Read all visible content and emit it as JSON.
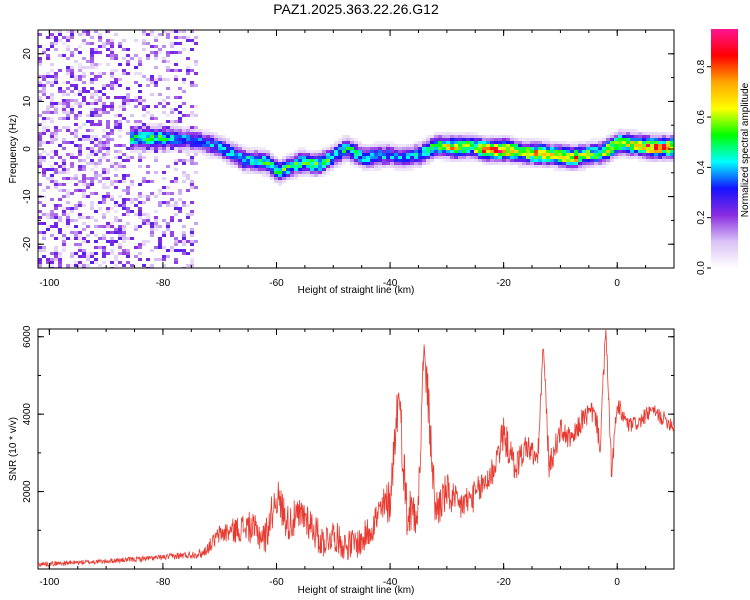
{
  "title": "PAZ1.2025.363.22.26.G12",
  "chart_data": [
    {
      "type": "heatmap",
      "xlabel": "Height of straight line (km)",
      "ylabel": "Frequency (Hz)",
      "xlim": [
        -102,
        10
      ],
      "ylim": [
        -25,
        25
      ],
      "x_ticks": [
        "-100",
        "-80",
        "-60",
        "-40",
        "-20",
        "0"
      ],
      "y_ticks": [
        "20",
        "10",
        "0",
        "-10",
        "-20"
      ],
      "x_tick_values": [
        -100,
        -80,
        -60,
        -40,
        -20,
        0
      ],
      "y_tick_values": [
        20,
        10,
        0,
        -10,
        -20
      ],
      "colorbar": {
        "label": "Normalized spectral amplitude",
        "ticks": [
          "0.0",
          "0.2",
          "0.4",
          "0.6",
          "0.8"
        ],
        "tick_values": [
          0,
          0.2,
          0.4,
          0.6,
          0.8
        ],
        "range": [
          0,
          0.95
        ],
        "colors": [
          "#ffffff",
          "#d9c2f5",
          "#8a2be2",
          "#1414ff",
          "#00ffff",
          "#00ff00",
          "#ffff00",
          "#ffa500",
          "#ff0000",
          "#ff1493"
        ]
      },
      "ridge": [
        {
          "x": -86,
          "f": 2.5,
          "a": 0.45
        },
        {
          "x": -82,
          "f": 2.6,
          "a": 0.55
        },
        {
          "x": -78,
          "f": 2.5,
          "a": 0.4
        },
        {
          "x": -74,
          "f": 2.0,
          "a": 0.35
        },
        {
          "x": -70,
          "f": 0.5,
          "a": 0.4
        },
        {
          "x": -66,
          "f": -2.0,
          "a": 0.45
        },
        {
          "x": -62,
          "f": -2.5,
          "a": 0.5
        },
        {
          "x": -60,
          "f": -4.5,
          "a": 0.5
        },
        {
          "x": -56,
          "f": -2.5,
          "a": 0.5
        },
        {
          "x": -53,
          "f": -3.0,
          "a": 0.55
        },
        {
          "x": -50,
          "f": -1.0,
          "a": 0.45
        },
        {
          "x": -48,
          "f": 0.5,
          "a": 0.5
        },
        {
          "x": -45,
          "f": -1.5,
          "a": 0.45
        },
        {
          "x": -41,
          "f": -1.0,
          "a": 0.4
        },
        {
          "x": -38,
          "f": -1.5,
          "a": 0.35
        },
        {
          "x": -35,
          "f": -0.8,
          "a": 0.45
        },
        {
          "x": -32,
          "f": 1.0,
          "a": 0.55
        },
        {
          "x": -29,
          "f": 0.6,
          "a": 0.7
        },
        {
          "x": -26,
          "f": 0.8,
          "a": 0.6
        },
        {
          "x": -23,
          "f": 0.0,
          "a": 0.8
        },
        {
          "x": -20,
          "f": 0.2,
          "a": 0.85
        },
        {
          "x": -17,
          "f": -0.5,
          "a": 0.6
        },
        {
          "x": -14,
          "f": -0.7,
          "a": 0.75
        },
        {
          "x": -11,
          "f": -1.0,
          "a": 0.6
        },
        {
          "x": -8,
          "f": -1.5,
          "a": 0.75
        },
        {
          "x": -5,
          "f": -0.8,
          "a": 0.55
        },
        {
          "x": -3,
          "f": -0.5,
          "a": 0.6
        },
        {
          "x": 0,
          "f": 1.5,
          "a": 0.7
        },
        {
          "x": 3,
          "f": 1.2,
          "a": 0.7
        },
        {
          "x": 6,
          "f": 0.6,
          "a": 0.85
        },
        {
          "x": 9,
          "f": 0.6,
          "a": 0.8
        }
      ]
    },
    {
      "type": "line",
      "xlabel": "Height of straight line (km)",
      "ylabel": "SNR (10 * v/v)",
      "xlim": [
        -102,
        10
      ],
      "ylim": [
        0,
        6200
      ],
      "x_ticks": [
        "-100",
        "-80",
        "-60",
        "-40",
        "-20",
        "0"
      ],
      "x_tick_values": [
        -100,
        -80,
        -60,
        -40,
        -20,
        0
      ],
      "y_ticks": [
        "2000",
        "4000",
        "6000"
      ],
      "y_tick_values": [
        2000,
        4000,
        6000
      ],
      "color": "#e83a30",
      "series": [
        {
          "x": [
            -102,
            -90,
            -80,
            -73,
            -70,
            -65,
            -62,
            -60,
            -58,
            -55,
            -52,
            -50,
            -48,
            -45,
            -42,
            -40,
            -38.5,
            -37,
            -35,
            -34,
            -32,
            -30,
            -28,
            -25,
            -22,
            -20,
            -18,
            -16,
            -14,
            -13,
            -12,
            -10,
            -8,
            -6,
            -4,
            -3,
            -2,
            -1,
            0,
            2,
            4,
            6,
            8,
            10
          ],
          "y": [
            120,
            200,
            300,
            400,
            900,
            1100,
            800,
            1900,
            1200,
            1400,
            700,
            900,
            600,
            700,
            1400,
            1800,
            4600,
            1400,
            1700,
            5800,
            1500,
            2000,
            1600,
            1900,
            2500,
            3500,
            2600,
            3200,
            2800,
            5800,
            2600,
            3600,
            3300,
            3900,
            4100,
            3200,
            6200,
            2500,
            4200,
            3700,
            3800,
            4100,
            3900,
            3700
          ],
          "noise_amplitude": [
            60,
            60,
            70,
            120,
            250,
            400,
            450,
            500,
            500,
            500,
            450,
            400,
            400,
            400,
            500,
            600,
            700,
            700,
            700,
            700,
            600,
            500,
            450,
            400,
            450,
            450,
            400,
            350,
            350,
            300,
            350,
            300,
            300,
            300,
            300,
            300,
            300,
            300,
            300,
            200,
            200,
            200,
            200,
            200
          ]
        }
      ]
    }
  ]
}
